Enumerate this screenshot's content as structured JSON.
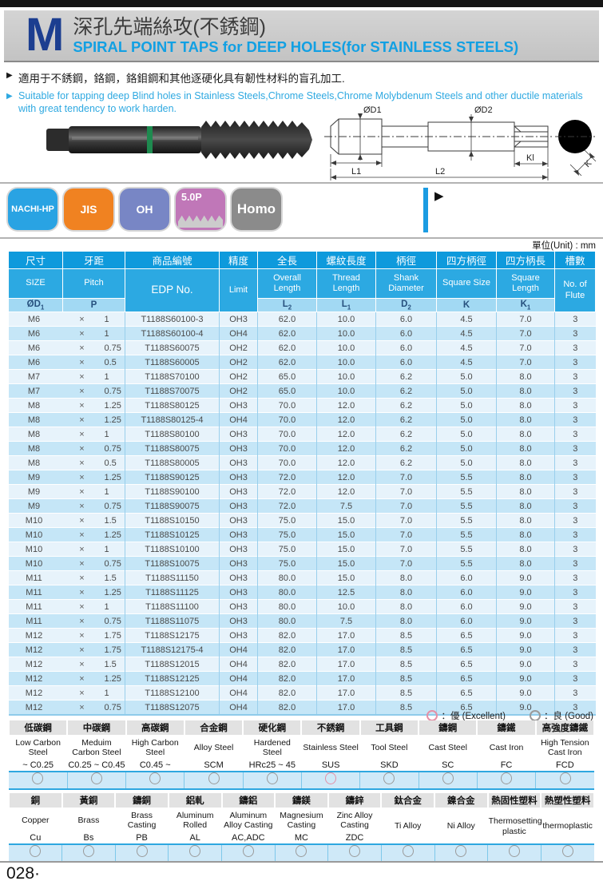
{
  "header": {
    "letter": "M",
    "title_zh": "深孔先端絲攻(不銹鋼)",
    "title_en": "SPIRAL POINT TAPS for DEEP HOLES(for STAINLESS STEELS)"
  },
  "intro": {
    "zh": "適用于不銹鋼，鉻鋼，鉻鉬鋼和其他逐硬化具有韌性材料的盲孔加工.",
    "en": "Suitable for tapping deep Blind holes in Stainless Steels,Chrome Steels,Chrome Molybdenum Steels and other ductile materials with great tendency to work harden.",
    "bullet_glyph": "▶"
  },
  "badges": [
    {
      "label": "NACHI-HP",
      "color": "#29A3E3"
    },
    {
      "label": "JIS",
      "color": "#F08221"
    },
    {
      "label": "OH",
      "color": "#7886C5"
    },
    {
      "label": "5.0P",
      "color": "#C077B8",
      "icon": "thread-profile"
    },
    {
      "label": "Homo",
      "color": "#8B8B8B"
    }
  ],
  "pointer_glyph": "▶",
  "diagram": {
    "labels": {
      "d1": "ØD1",
      "d2": "ØD2",
      "l1": "L1",
      "l2": "L2",
      "kl": "Kl",
      "k": "K"
    }
  },
  "unit_label": "單位(Unit) : mm",
  "main_table": {
    "times_symbol": "×",
    "columns": [
      {
        "zh": "尺寸",
        "en": "SIZE",
        "sym": "ØD1"
      },
      {
        "zh": "牙距",
        "en": "Pitch",
        "sym": "P"
      },
      {
        "zh": "商品編號",
        "en": "EDP No.",
        "sym": ""
      },
      {
        "zh": "精度",
        "en": "Limit",
        "sym": ""
      },
      {
        "zh": "全長",
        "en": "Overall Length",
        "sym": "L2"
      },
      {
        "zh": "螺紋長度",
        "en": "Thread Length",
        "sym": "L1"
      },
      {
        "zh": "柄徑",
        "en": "Shank Diameter",
        "sym": "D2"
      },
      {
        "zh": "四方柄徑",
        "en": "Square Size",
        "sym": "K"
      },
      {
        "zh": "四方柄長",
        "en": "Square Length",
        "sym": "K1"
      },
      {
        "zh": "槽數",
        "en": "No. of Flute",
        "sym": ""
      }
    ],
    "rows": [
      [
        "M6",
        "1",
        "T1188S60100-3",
        "OH3",
        "62.0",
        "10.0",
        "6.0",
        "4.5",
        "7.0",
        "3"
      ],
      [
        "M6",
        "1",
        "T1188S60100-4",
        "OH4",
        "62.0",
        "10.0",
        "6.0",
        "4.5",
        "7.0",
        "3"
      ],
      [
        "M6",
        "0.75",
        "T1188S60075",
        "OH2",
        "62.0",
        "10.0",
        "6.0",
        "4.5",
        "7.0",
        "3"
      ],
      [
        "M6",
        "0.5",
        "T1188S60005",
        "OH2",
        "62.0",
        "10.0",
        "6.0",
        "4.5",
        "7.0",
        "3"
      ],
      [
        "M7",
        "1",
        "T1188S70100",
        "OH2",
        "65.0",
        "10.0",
        "6.2",
        "5.0",
        "8.0",
        "3"
      ],
      [
        "M7",
        "0.75",
        "T1188S70075",
        "OH2",
        "65.0",
        "10.0",
        "6.2",
        "5.0",
        "8.0",
        "3"
      ],
      [
        "M8",
        "1.25",
        "T1188S80125",
        "OH3",
        "70.0",
        "12.0",
        "6.2",
        "5.0",
        "8.0",
        "3"
      ],
      [
        "M8",
        "1.25",
        "T1188S80125-4",
        "OH4",
        "70.0",
        "12.0",
        "6.2",
        "5.0",
        "8.0",
        "3"
      ],
      [
        "M8",
        "1",
        "T1188S80100",
        "OH3",
        "70.0",
        "12.0",
        "6.2",
        "5.0",
        "8.0",
        "3"
      ],
      [
        "M8",
        "0.75",
        "T1188S80075",
        "OH3",
        "70.0",
        "12.0",
        "6.2",
        "5.0",
        "8.0",
        "3"
      ],
      [
        "M8",
        "0.5",
        "T1188S80005",
        "OH3",
        "70.0",
        "12.0",
        "6.2",
        "5.0",
        "8.0",
        "3"
      ],
      [
        "M9",
        "1.25",
        "T1188S90125",
        "OH3",
        "72.0",
        "12.0",
        "7.0",
        "5.5",
        "8.0",
        "3"
      ],
      [
        "M9",
        "1",
        "T1188S90100",
        "OH3",
        "72.0",
        "12.0",
        "7.0",
        "5.5",
        "8.0",
        "3"
      ],
      [
        "M9",
        "0.75",
        "T1188S90075",
        "OH3",
        "72.0",
        "7.5",
        "7.0",
        "5.5",
        "8.0",
        "3"
      ],
      [
        "M10",
        "1.5",
        "T1188S10150",
        "OH3",
        "75.0",
        "15.0",
        "7.0",
        "5.5",
        "8.0",
        "3"
      ],
      [
        "M10",
        "1.25",
        "T1188S10125",
        "OH3",
        "75.0",
        "15.0",
        "7.0",
        "5.5",
        "8.0",
        "3"
      ],
      [
        "M10",
        "1",
        "T1188S10100",
        "OH3",
        "75.0",
        "15.0",
        "7.0",
        "5.5",
        "8.0",
        "3"
      ],
      [
        "M10",
        "0.75",
        "T1188S10075",
        "OH3",
        "75.0",
        "15.0",
        "7.0",
        "5.5",
        "8.0",
        "3"
      ],
      [
        "M11",
        "1.5",
        "T1188S11150",
        "OH3",
        "80.0",
        "15.0",
        "8.0",
        "6.0",
        "9.0",
        "3"
      ],
      [
        "M11",
        "1.25",
        "T1188S11125",
        "OH3",
        "80.0",
        "12.5",
        "8.0",
        "6.0",
        "9.0",
        "3"
      ],
      [
        "M11",
        "1",
        "T1188S11100",
        "OH3",
        "80.0",
        "10.0",
        "8.0",
        "6.0",
        "9.0",
        "3"
      ],
      [
        "M11",
        "0.75",
        "T1188S11075",
        "OH3",
        "80.0",
        "7.5",
        "8.0",
        "6.0",
        "9.0",
        "3"
      ],
      [
        "M12",
        "1.75",
        "T1188S12175",
        "OH3",
        "82.0",
        "17.0",
        "8.5",
        "6.5",
        "9.0",
        "3"
      ],
      [
        "M12",
        "1.75",
        "T1188S12175-4",
        "OH4",
        "82.0",
        "17.0",
        "8.5",
        "6.5",
        "9.0",
        "3"
      ],
      [
        "M12",
        "1.5",
        "T1188S12015",
        "OH4",
        "82.0",
        "17.0",
        "8.5",
        "6.5",
        "9.0",
        "3"
      ],
      [
        "M12",
        "1.25",
        "T1188S12125",
        "OH4",
        "82.0",
        "17.0",
        "8.5",
        "6.5",
        "9.0",
        "3"
      ],
      [
        "M12",
        "1",
        "T1188S12100",
        "OH4",
        "82.0",
        "17.0",
        "8.5",
        "6.5",
        "9.0",
        "3"
      ],
      [
        "M12",
        "0.75",
        "T1188S12075",
        "OH4",
        "82.0",
        "17.0",
        "8.5",
        "6.5",
        "9.0",
        "3"
      ]
    ]
  },
  "legend": {
    "excellent": "：優 (Excellent)",
    "good": "：良 (Good)"
  },
  "material_tables": [
    {
      "columns": [
        {
          "zh": "低碳鋼",
          "en": "Low Carbon Steel",
          "code": "~ C0.25",
          "mark": "good"
        },
        {
          "zh": "中碳鋼",
          "en": "Meduim Carbon Steel",
          "code": "C0.25 ~ C0.45",
          "mark": "good"
        },
        {
          "zh": "高碳鋼",
          "en": "High Carbon Steel",
          "code": "C0.45 ~",
          "mark": "good"
        },
        {
          "zh": "合金鋼",
          "en": "Alloy Steel",
          "code": "SCM",
          "mark": "good"
        },
        {
          "zh": "硬化鋼",
          "en": "Hardened Steel",
          "code": "HRc25 ~ 45",
          "mark": "good"
        },
        {
          "zh": "不銹鋼",
          "en": "Stainless Steel",
          "code": "SUS",
          "mark": "excellent"
        },
        {
          "zh": "工具鋼",
          "en": "Tool Steel",
          "code": "SKD",
          "mark": "good"
        },
        {
          "zh": "鑄鋼",
          "en": "Cast Steel",
          "code": "SC",
          "mark": "good"
        },
        {
          "zh": "鑄鐵",
          "en": "Cast Iron",
          "code": "FC",
          "mark": "good"
        },
        {
          "zh": "高強度鑄鐵",
          "en": "High Tension Cast Iron",
          "code": "FCD",
          "mark": "good"
        }
      ]
    },
    {
      "columns": [
        {
          "zh": "銅",
          "en": "Copper",
          "code": "Cu",
          "mark": "good"
        },
        {
          "zh": "黃銅",
          "en": "Brass",
          "code": "Bs",
          "mark": "good"
        },
        {
          "zh": "鑄銅",
          "en": "Brass Casting",
          "code": "PB",
          "mark": "good"
        },
        {
          "zh": "鋁軋",
          "en": "Aluminum Rolled",
          "code": "AL",
          "mark": "good"
        },
        {
          "zh": "鑄鋁",
          "en": "Aluminum Alloy Casting",
          "code": "AC,ADC",
          "mark": "good"
        },
        {
          "zh": "鑄鎂",
          "en": "Magnesium Casting",
          "code": "MC",
          "mark": "good"
        },
        {
          "zh": "鑄鋅",
          "en": "Zinc Alloy Casting",
          "code": "ZDC",
          "mark": "good"
        },
        {
          "zh": "鈦合金",
          "en": "Ti Alloy",
          "code": null,
          "mark": "good"
        },
        {
          "zh": "鎳合金",
          "en": "Ni Alloy",
          "code": null,
          "mark": "good"
        },
        {
          "zh": "熱固性塑料",
          "en": "Thermosetting plastic",
          "code": null,
          "mark": "good"
        },
        {
          "zh": "熱塑性塑料",
          "en": "thermoplastic",
          "code": null,
          "mark": "good"
        }
      ]
    }
  ],
  "page_number": "028·",
  "colors": {
    "accent_blue": "#2CA9E2",
    "header_zh_row": "#0E9ADC",
    "header_sym_row": "#A2D9F3",
    "row_light": "#E7F3FB",
    "row_dark": "#C5E6F7",
    "excellent_pink": "#E48FA6",
    "good_gray": "#9A9A9A",
    "green_ring": "#1E8A4F"
  }
}
